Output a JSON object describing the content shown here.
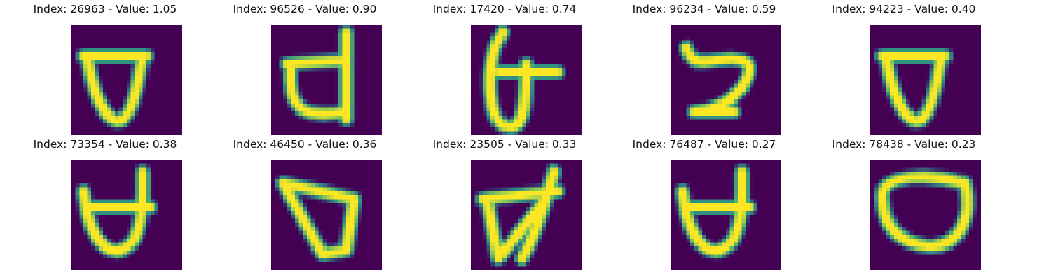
{
  "colors": {
    "background": "#440154",
    "stroke_core": "#fde725",
    "stroke_mid": "#35b779",
    "stroke_edge": "#31688e"
  },
  "chart_data": {
    "type": "image-grid",
    "colormap": "viridis",
    "rows": 2,
    "cols": 5,
    "panels": [
      {
        "title": "Index: 26963 - Value: 1.05",
        "index": 26963,
        "value": 1.05,
        "glyph": "cup-bar"
      },
      {
        "title": "Index: 96526 - Value: 0.90",
        "index": 96526,
        "value": 0.9,
        "glyph": "d-bowl"
      },
      {
        "title": "Index: 17420 - Value: 0.74",
        "index": 17420,
        "value": 0.74,
        "glyph": "loop-cross"
      },
      {
        "title": "Index: 96234 - Value: 0.59",
        "index": 96234,
        "value": 0.59,
        "glyph": "s-curve"
      },
      {
        "title": "Index: 94223 - Value: 0.40",
        "index": 94223,
        "value": 0.4,
        "glyph": "cup-bar"
      },
      {
        "title": "Index: 73354 - Value: 0.38",
        "index": 73354,
        "value": 0.38,
        "glyph": "d-cup"
      },
      {
        "title": "Index: 46450 - Value: 0.36",
        "index": 46450,
        "value": 0.36,
        "glyph": "triangle"
      },
      {
        "title": "Index: 23505 - Value: 0.33",
        "index": 23505,
        "value": 0.33,
        "glyph": "thick-v"
      },
      {
        "title": "Index: 76487 - Value: 0.27",
        "index": 76487,
        "value": 0.27,
        "glyph": "d-cup"
      },
      {
        "title": "Index: 78438 - Value: 0.23",
        "index": 78438,
        "value": 0.23,
        "glyph": "oval"
      }
    ]
  }
}
